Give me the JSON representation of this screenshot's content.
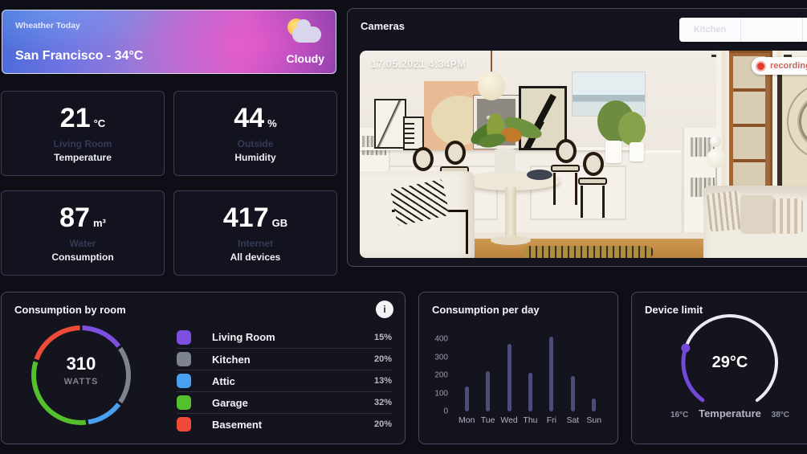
{
  "weather": {
    "title": "Wheather Today",
    "location": "San Francisco - 34°C",
    "condition": "Cloudy",
    "icon": "sun-behind-cloud"
  },
  "stats": [
    {
      "value": "21",
      "unit": "°C",
      "subtitle": "Living Room",
      "label": "Temperature"
    },
    {
      "value": "44",
      "unit": "%",
      "subtitle": "Outside",
      "label": "Humidity"
    },
    {
      "value": "87",
      "unit": "m³",
      "subtitle": "Water",
      "label": "Consumption"
    },
    {
      "value": "417",
      "unit": "GB",
      "subtitle": "Internet",
      "label": "All devices"
    }
  ],
  "cameras": {
    "title": "Cameras",
    "timestamp": "17.05.2021 4:34PM",
    "recording_label": "recording",
    "tabs": [
      {
        "label": "Kitchen"
      },
      {
        "label": ""
      },
      {
        "label": ""
      }
    ]
  },
  "info_icon": "i",
  "chart_data": [
    {
      "type": "pie",
      "title": "Consumption by room",
      "center_value": "310",
      "center_label": "WATTS",
      "legend_position": "right",
      "segments": [
        {
          "label": "Living Room",
          "value": 15,
          "color": "#7c4fe0"
        },
        {
          "label": "Kitchen",
          "value": 20,
          "color": "#7d848f"
        },
        {
          "label": "Attic",
          "value": 13,
          "color": "#4aa0f0"
        },
        {
          "label": "Garage",
          "value": 32,
          "color": "#55c02e"
        },
        {
          "label": "Basement",
          "value": 20,
          "color": "#ef4b38"
        }
      ]
    },
    {
      "type": "bar",
      "title": "Consumption per day",
      "categories": [
        "Mon",
        "Tue",
        "Wed",
        "Thu",
        "Fri",
        "Sat",
        "Sun"
      ],
      "values": [
        140,
        225,
        375,
        215,
        415,
        195,
        70
      ],
      "ylim": [
        0,
        450
      ],
      "y_ticks": [
        0,
        100,
        200,
        300,
        400
      ],
      "bar_color": "#4d4d7a",
      "grid": false
    },
    {
      "type": "gauge",
      "title": "Device limit",
      "value_label": "29°C",
      "min_label": "16°C",
      "max_label": "38°C",
      "axis_label": "Temperature",
      "progress_color": "#7448d8",
      "track_color": "#ebebf2"
    }
  ]
}
